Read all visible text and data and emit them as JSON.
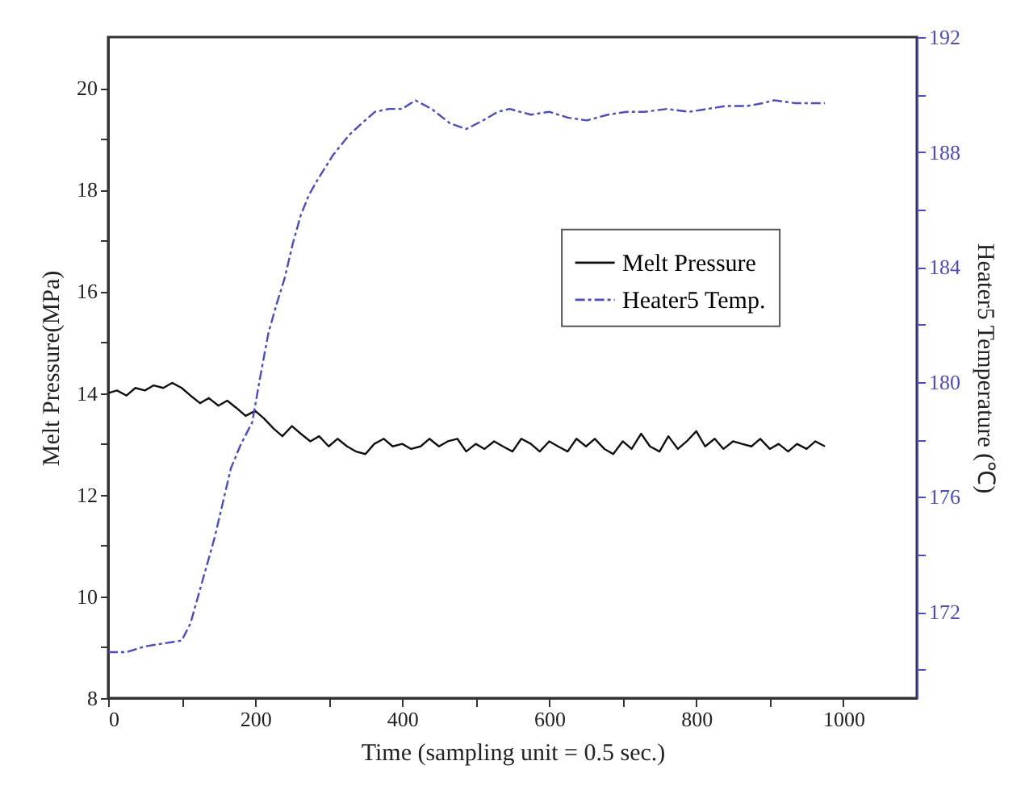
{
  "chart_data": {
    "type": "line",
    "xlabel": "Time (sampling unit = 0.5 sec.)",
    "ylabel": "Melt Pressure(MPa)",
    "y2label": "Heater5 Temperature (℃)",
    "xlim": [
      0,
      1100
    ],
    "xticks": [
      0,
      {
        "value": 100,
        "label": null
      },
      200,
      {
        "value": 300,
        "label": null
      },
      400,
      {
        "value": 500,
        "label": null
      },
      600,
      {
        "value": 700,
        "label": null
      },
      800,
      {
        "value": 900,
        "label": null
      },
      1000
    ],
    "ylim": [
      8,
      21
    ],
    "yticks": [
      8,
      {
        "value": 9,
        "label": null
      },
      10,
      {
        "value": 11,
        "label": null
      },
      12,
      {
        "value": 13,
        "label": null
      },
      14,
      {
        "value": 15,
        "label": null
      },
      16,
      {
        "value": 17,
        "label": null
      },
      18,
      {
        "value": 19,
        "label": null
      },
      20
    ],
    "y2lim": [
      169,
      192
    ],
    "y2ticks": [
      {
        "value": 170,
        "label": null
      },
      172,
      {
        "value": 174,
        "label": null
      },
      176,
      {
        "value": 178,
        "label": null
      },
      180,
      {
        "value": 182,
        "label": null
      },
      184,
      {
        "value": 186,
        "label": null
      },
      188,
      {
        "value": 190,
        "label": null
      },
      192
    ],
    "grid": false,
    "legend": "top right",
    "marker": "none",
    "series": [
      {
        "name": "Melt Pressure",
        "color": "#111111",
        "line_style": "solid",
        "x": [
          0,
          12,
          25,
          37,
          50,
          62,
          75,
          87,
          100,
          112,
          125,
          137,
          150,
          162,
          175,
          187,
          200,
          212,
          225,
          237,
          250,
          262,
          275,
          287,
          300,
          312,
          325,
          337,
          350,
          362,
          375,
          387,
          400,
          412,
          425,
          437,
          450,
          462,
          475,
          487,
          500,
          512,
          525,
          537,
          550,
          562,
          575,
          587,
          600,
          612,
          625,
          637,
          650,
          662,
          675,
          687,
          700,
          712,
          725,
          737,
          750,
          762,
          775,
          787,
          800,
          812,
          825,
          837,
          850,
          862,
          875,
          887,
          900,
          912,
          925,
          937,
          950,
          962,
          975
        ],
        "values": [
          14.0,
          14.05,
          13.95,
          14.1,
          14.05,
          14.15,
          14.1,
          14.2,
          14.1,
          13.95,
          13.8,
          13.9,
          13.75,
          13.85,
          13.7,
          13.55,
          13.65,
          13.5,
          13.3,
          13.15,
          13.35,
          13.2,
          13.05,
          13.15,
          12.95,
          13.1,
          12.95,
          12.85,
          12.8,
          13.0,
          13.1,
          12.95,
          13.0,
          12.9,
          12.95,
          13.1,
          12.95,
          13.05,
          13.1,
          12.85,
          13.0,
          12.9,
          13.05,
          12.95,
          12.85,
          13.1,
          13.0,
          12.85,
          13.05,
          12.95,
          12.85,
          13.1,
          12.95,
          13.1,
          12.9,
          12.8,
          13.05,
          12.9,
          13.2,
          12.95,
          12.85,
          13.15,
          12.9,
          13.05,
          13.25,
          12.95,
          13.1,
          12.9,
          13.05,
          13.0,
          12.95,
          13.1,
          12.9,
          13.0,
          12.85,
          13.0,
          12.9,
          13.05,
          12.95
        ]
      },
      {
        "name": "Heater5 Temp.",
        "color": "#4a4ad0",
        "line_style": "dashed",
        "axis": "y2",
        "x": [
          0,
          25,
          50,
          75,
          100,
          112,
          123,
          134,
          145,
          156,
          167,
          180,
          196,
          207,
          218,
          229,
          240,
          251,
          262,
          273,
          284,
          306,
          328,
          345,
          363,
          382,
          400,
          418,
          440,
          465,
          487,
          510,
          530,
          546,
          575,
          600,
          625,
          651,
          680,
          705,
          730,
          760,
          790,
          815,
          840,
          869,
          890,
          906,
          935,
          963,
          975
        ],
        "values": [
          170.6,
          170.6,
          170.8,
          170.9,
          171.0,
          171.6,
          172.6,
          173.6,
          174.6,
          175.8,
          177.0,
          177.8,
          178.6,
          180.2,
          181.7,
          182.7,
          183.6,
          184.8,
          185.8,
          186.5,
          187.0,
          187.9,
          188.6,
          189.0,
          189.4,
          189.5,
          189.5,
          189.8,
          189.5,
          189.0,
          188.8,
          189.1,
          189.4,
          189.5,
          189.3,
          189.4,
          189.2,
          189.1,
          189.3,
          189.4,
          189.4,
          189.5,
          189.4,
          189.5,
          189.6,
          189.6,
          189.7,
          189.8,
          189.7,
          189.7,
          189.7
        ]
      }
    ]
  }
}
